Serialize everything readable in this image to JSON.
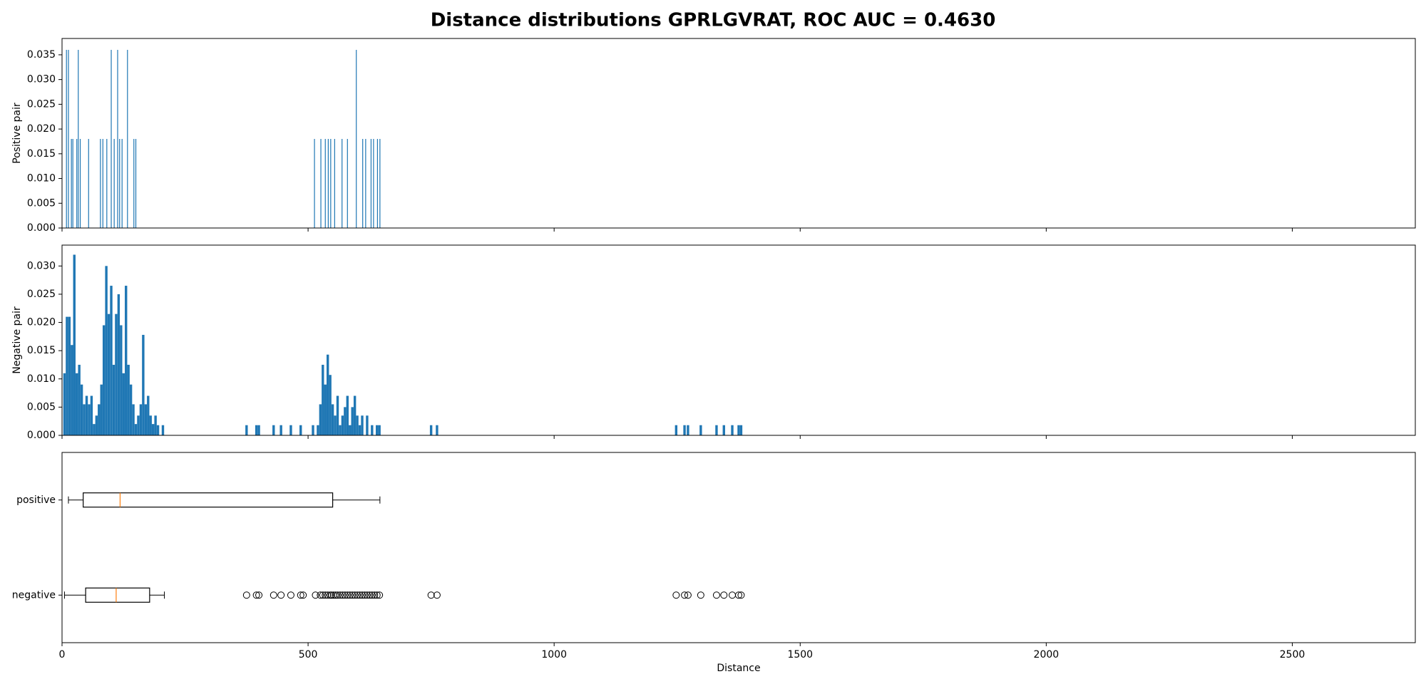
{
  "chart_data": [
    {
      "type": "histogram",
      "title": "Distance distributions GPRLGVRAT, ROC AUC = 0.4630",
      "ylabel": "Positive pair",
      "color": "#1f77b4",
      "x": [
        9,
        13,
        19,
        22,
        30,
        33,
        37,
        54,
        78,
        83,
        91,
        100,
        106,
        113,
        117,
        122,
        133,
        146,
        150,
        513,
        526,
        535,
        541,
        546,
        554,
        569,
        580,
        598,
        611,
        617,
        628,
        633,
        641,
        646
      ],
      "values": [
        0.036,
        0.036,
        0.018,
        0.018,
        0.018,
        0.036,
        0.018,
        0.018,
        0.018,
        0.018,
        0.018,
        0.036,
        0.018,
        0.036,
        0.018,
        0.018,
        0.036,
        0.018,
        0.018,
        0.018,
        0.018,
        0.018,
        0.018,
        0.018,
        0.018,
        0.018,
        0.018,
        0.036,
        0.018,
        0.018,
        0.018,
        0.018,
        0.018,
        0.018
      ],
      "xlim": [
        0,
        2750
      ],
      "xticks": [
        0,
        500,
        1000,
        1500,
        2000,
        2500
      ],
      "ylim": [
        0,
        0.0383
      ],
      "yticks": [
        {
          "value": 0,
          "label": "0.000"
        },
        {
          "value": 0.005,
          "label": "0.005"
        },
        {
          "value": 0.01,
          "label": "0.010"
        },
        {
          "value": 0.015,
          "label": "0.015"
        },
        {
          "value": 0.02,
          "label": "0.020"
        },
        {
          "value": 0.025,
          "label": "0.025"
        },
        {
          "value": 0.03,
          "label": "0.030"
        },
        {
          "value": 0.035,
          "label": "0.035"
        }
      ]
    },
    {
      "type": "histogram",
      "ylabel": "Negative pair",
      "color": "#1f77b4",
      "x": [
        5,
        10,
        15,
        20,
        25,
        30,
        35,
        40,
        45,
        50,
        55,
        60,
        65,
        70,
        75,
        80,
        85,
        90,
        95,
        100,
        105,
        110,
        115,
        120,
        125,
        130,
        135,
        140,
        145,
        150,
        155,
        160,
        165,
        170,
        175,
        180,
        185,
        190,
        195,
        205,
        375,
        395,
        400,
        430,
        445,
        465,
        485,
        510,
        520,
        525,
        530,
        535,
        540,
        545,
        550,
        555,
        560,
        565,
        570,
        575,
        580,
        585,
        590,
        595,
        600,
        605,
        610,
        620,
        630,
        640,
        645,
        750,
        762,
        1248,
        1265,
        1272,
        1298,
        1330,
        1345,
        1362,
        1375,
        1380
      ],
      "values": [
        0.011,
        0.021,
        0.021,
        0.016,
        0.032,
        0.011,
        0.0125,
        0.009,
        0.0055,
        0.007,
        0.0055,
        0.007,
        0.002,
        0.0035,
        0.0055,
        0.009,
        0.0195,
        0.03,
        0.0215,
        0.0265,
        0.0125,
        0.0215,
        0.025,
        0.0195,
        0.011,
        0.0265,
        0.0125,
        0.009,
        0.0055,
        0.002,
        0.0035,
        0.0055,
        0.0178,
        0.0055,
        0.007,
        0.0035,
        0.002,
        0.0035,
        0.0018,
        0.0018,
        0.0018,
        0.0018,
        0.0018,
        0.0018,
        0.0018,
        0.0018,
        0.0018,
        0.0018,
        0.0018,
        0.0055,
        0.0125,
        0.009,
        0.0143,
        0.0107,
        0.0055,
        0.0035,
        0.007,
        0.0018,
        0.0035,
        0.005,
        0.007,
        0.0018,
        0.005,
        0.007,
        0.0035,
        0.0018,
        0.0035,
        0.0035,
        0.0018,
        0.0018,
        0.0018,
        0.0018,
        0.0018,
        0.0018,
        0.0018,
        0.0018,
        0.0018,
        0.0018,
        0.0018,
        0.0018,
        0.0018,
        0.0018
      ],
      "xlim": [
        0,
        2750
      ],
      "xticks": [
        0,
        500,
        1000,
        1500,
        2000,
        2500
      ],
      "ylim": [
        0,
        0.0337
      ],
      "yticks": [
        {
          "value": 0,
          "label": "0.000"
        },
        {
          "value": 0.005,
          "label": "0.005"
        },
        {
          "value": 0.01,
          "label": "0.010"
        },
        {
          "value": 0.015,
          "label": "0.015"
        },
        {
          "value": 0.02,
          "label": "0.020"
        },
        {
          "value": 0.025,
          "label": "0.025"
        },
        {
          "value": 0.03,
          "label": "0.030"
        }
      ]
    },
    {
      "type": "box",
      "xlabel": "Distance",
      "box_color": "#000000",
      "median_color": "#ff7f0e",
      "series": [
        {
          "name": "positive",
          "whislo": 13,
          "q1": 43,
          "med": 118,
          "q3": 550,
          "whishi": 646,
          "fliers": []
        },
        {
          "name": "negative",
          "whislo": 5,
          "q1": 48,
          "med": 110,
          "q3": 178,
          "whishi": 208,
          "fliers": [
            375,
            395,
            400,
            430,
            445,
            465,
            485,
            490,
            515,
            525,
            530,
            535,
            540,
            545,
            548,
            552,
            556,
            560,
            565,
            570,
            575,
            580,
            585,
            590,
            595,
            600,
            605,
            610,
            615,
            620,
            625,
            630,
            635,
            640,
            645,
            750,
            762,
            1248,
            1265,
            1272,
            1298,
            1330,
            1345,
            1362,
            1375,
            1380
          ]
        }
      ],
      "xlim": [
        0,
        2750
      ],
      "xticks": [
        0,
        500,
        1000,
        1500,
        2000,
        2500
      ]
    }
  ]
}
